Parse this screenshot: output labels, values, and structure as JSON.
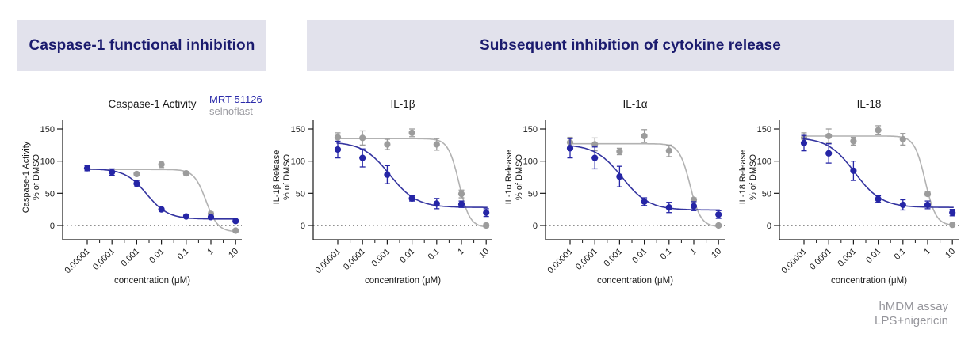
{
  "banners": {
    "left": {
      "label": "Caspase-1 functional inhibition",
      "bg": "#e2e2ec",
      "color": "#1b1b6e"
    },
    "right": {
      "label": "Subsequent inhibition of cytokine release",
      "bg": "#e2e2ec",
      "color": "#1b1b6e"
    }
  },
  "legend": {
    "items": [
      {
        "label": "MRT-51126",
        "color": "#2b2baa"
      },
      {
        "label": "selnoflast",
        "color": "#9b9ba1"
      }
    ]
  },
  "footnote": {
    "lines": [
      "hMDM assay",
      "LPS+nigericin"
    ],
    "color": "#95959b"
  },
  "colors": {
    "blue_series": "#2525a6",
    "blue_curve": "#3434a0",
    "gray_series": "#9c9c9c",
    "gray_curve": "#b2b2b2",
    "axis": "#1a1a1a",
    "zero_line": "#222222"
  },
  "chart_data": [
    {
      "type": "scatter",
      "title": "Caspase-1 Activity",
      "ylabel_line1": "Caspase-1 Activity",
      "ylabel_line2": "% of DMSO",
      "xlabel": "concentration (μM)",
      "xtick_labels": [
        "0.00001",
        "0.0001",
        "0.001",
        "0.01",
        "0.1",
        "1",
        "10"
      ],
      "ytick_values": [
        0,
        50,
        100,
        150
      ],
      "ylim": [
        -25,
        165
      ],
      "xscale": "log",
      "zero_line_dotted": true,
      "series": [
        {
          "name": "MRT-51126",
          "color": "#2525a6",
          "curve_color": "#3434a0",
          "x": [
            1e-05,
            0.0001,
            0.001,
            0.01,
            0.1,
            1,
            10
          ],
          "values": [
            89,
            83,
            65,
            25,
            14,
            13,
            7
          ],
          "errors": [
            4,
            5,
            5,
            2,
            2,
            2,
            2
          ],
          "curve": {
            "top": 88,
            "bottom": 10,
            "logIC50": -2.6,
            "hill": 1.0
          }
        },
        {
          "name": "selnoflast",
          "color": "#9c9c9c",
          "curve_color": "#b2b2b2",
          "x": [
            0.001,
            0.01,
            0.1,
            1,
            10
          ],
          "values": [
            80,
            95,
            81,
            18,
            -8
          ],
          "errors": [
            2,
            5,
            3,
            3,
            2
          ],
          "curve": {
            "top": 87,
            "bottom": -10,
            "logIC50": -0.2,
            "hill": 1.8
          }
        }
      ]
    },
    {
      "type": "scatter",
      "title": "IL-1β",
      "ylabel_line1": "IL-1β Release",
      "ylabel_line2": "% of DMSO",
      "xlabel": "concentration (μM)",
      "xtick_labels": [
        "0.00001",
        "0.0001",
        "0.001",
        "0.01",
        "0.1",
        "1",
        "10"
      ],
      "ytick_values": [
        0,
        50,
        100,
        150
      ],
      "ylim": [
        -25,
        165
      ],
      "xscale": "log",
      "zero_line_dotted": true,
      "series": [
        {
          "name": "MRT-51126",
          "color": "#2525a6",
          "curve_color": "#3434a0",
          "x": [
            1e-05,
            0.0001,
            0.001,
            0.01,
            0.1,
            1,
            10
          ],
          "values": [
            118,
            105,
            79,
            42,
            34,
            33,
            20
          ],
          "errors": [
            13,
            14,
            14,
            4,
            8,
            5,
            6
          ],
          "curve": {
            "top": 130,
            "bottom": 28,
            "logIC50": -2.9,
            "hill": 0.8
          }
        },
        {
          "name": "selnoflast",
          "color": "#9c9c9c",
          "curve_color": "#b2b2b2",
          "x": [
            1e-05,
            0.0001,
            0.001,
            0.01,
            0.1,
            1,
            10
          ],
          "values": [
            137,
            136,
            126,
            144,
            126,
            49,
            0
          ],
          "errors": [
            7,
            11,
            8,
            6,
            9,
            6,
            3
          ],
          "curve": {
            "top": 135,
            "bottom": -3,
            "logIC50": -0.1,
            "hill": 2.0
          }
        }
      ]
    },
    {
      "type": "scatter",
      "title": "IL-1α",
      "ylabel_line1": "IL-1α Release",
      "ylabel_line2": "% of DMSO",
      "xlabel": "concentration (μM)",
      "xtick_labels": [
        "0.00001",
        "0.0001",
        "0.001",
        "0.01",
        "0.1",
        "1",
        "10"
      ],
      "ytick_values": [
        0,
        50,
        100,
        150
      ],
      "ylim": [
        -25,
        165
      ],
      "xscale": "log",
      "zero_line_dotted": true,
      "series": [
        {
          "name": "MRT-51126",
          "color": "#2525a6",
          "curve_color": "#3434a0",
          "x": [
            1e-05,
            0.0001,
            0.001,
            0.01,
            0.1,
            1,
            10
          ],
          "values": [
            120,
            105,
            76,
            37,
            28,
            30,
            17
          ],
          "errors": [
            15,
            17,
            16,
            6,
            8,
            7,
            6
          ],
          "curve": {
            "top": 126,
            "bottom": 24,
            "logIC50": -2.9,
            "hill": 0.8
          }
        },
        {
          "name": "selnoflast",
          "color": "#9c9c9c",
          "curve_color": "#b2b2b2",
          "x": [
            1e-05,
            0.0001,
            0.001,
            0.01,
            0.1,
            1,
            10
          ],
          "values": [
            129,
            126,
            115,
            139,
            116,
            40,
            0
          ],
          "errors": [
            8,
            10,
            5,
            10,
            9,
            3,
            2
          ],
          "curve": {
            "top": 127,
            "bottom": -2,
            "logIC50": -0.15,
            "hill": 2.0
          }
        }
      ]
    },
    {
      "type": "scatter",
      "title": "IL-18",
      "ylabel_line1": "IL-18 Release",
      "ylabel_line2": "% of DMSO",
      "xlabel": "concentration (μM)",
      "xtick_labels": [
        "0.00001",
        "0.0001",
        "0.001",
        "0.01",
        "0.1",
        "1",
        "10"
      ],
      "ytick_values": [
        0,
        50,
        100,
        150
      ],
      "ylim": [
        -25,
        165
      ],
      "xscale": "log",
      "zero_line_dotted": true,
      "series": [
        {
          "name": "MRT-51126",
          "color": "#2525a6",
          "curve_color": "#3434a0",
          "x": [
            1e-05,
            0.0001,
            0.001,
            0.01,
            0.1,
            1,
            10
          ],
          "values": [
            128,
            112,
            85,
            41,
            32,
            32,
            20
          ],
          "errors": [
            12,
            15,
            15,
            5,
            8,
            6,
            5
          ],
          "curve": {
            "top": 137,
            "bottom": 28,
            "logIC50": -2.95,
            "hill": 0.8
          }
        },
        {
          "name": "selnoflast",
          "color": "#9c9c9c",
          "curve_color": "#b2b2b2",
          "x": [
            1e-05,
            0.0001,
            0.001,
            0.01,
            0.1,
            1,
            10
          ],
          "values": [
            136,
            139,
            131,
            148,
            134,
            49,
            1
          ],
          "errors": [
            8,
            11,
            6,
            7,
            9,
            3,
            2
          ],
          "curve": {
            "top": 139,
            "bottom": 0,
            "logIC50": -0.1,
            "hill": 2.0
          }
        }
      ]
    }
  ]
}
